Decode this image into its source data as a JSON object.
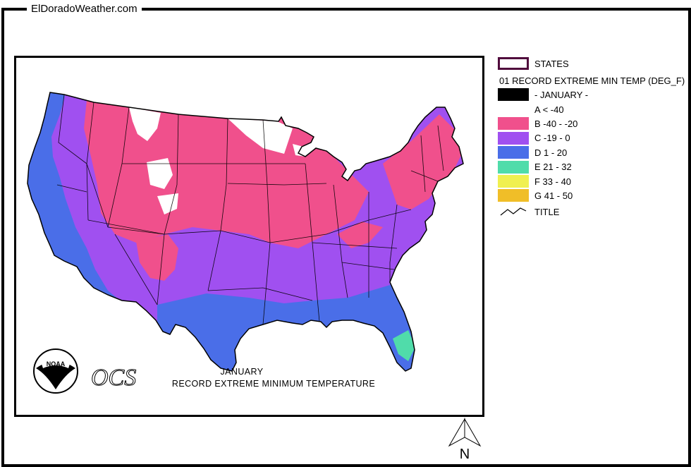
{
  "site": {
    "title": "ElDoradoWeather.com"
  },
  "map": {
    "caption_month": "JANUARY",
    "caption_title": "RECORD EXTREME MINIMUM TEMPERATURE",
    "noaa_text": "NOAA",
    "ocs_text": "OCS",
    "north_label": "N"
  },
  "legend": {
    "states_label": "STATES",
    "layer_title": "01 RECORD EXTREME MIN TEMP (DEG_F)",
    "month_label": "- JANUARY -",
    "title_label": "TITLE",
    "classes": [
      {
        "label": "A < -40",
        "color": "#000000"
      },
      {
        "label": "B -40 - -20",
        "color": "#f0508c"
      },
      {
        "label": "C -19 - 0",
        "color": "#a050f0"
      },
      {
        "label": "D 1 - 20",
        "color": "#4a6ee8"
      },
      {
        "label": "E 21 - 32",
        "color": "#50dcaa"
      },
      {
        "label": "F 33 - 40",
        "color": "#f0f050"
      },
      {
        "label": "G 41 - 50",
        "color": "#f0be28"
      }
    ]
  },
  "colors": {
    "outline": "#000000",
    "states_swatch_border": "#500a3c",
    "unclassified": "#ffffff"
  }
}
